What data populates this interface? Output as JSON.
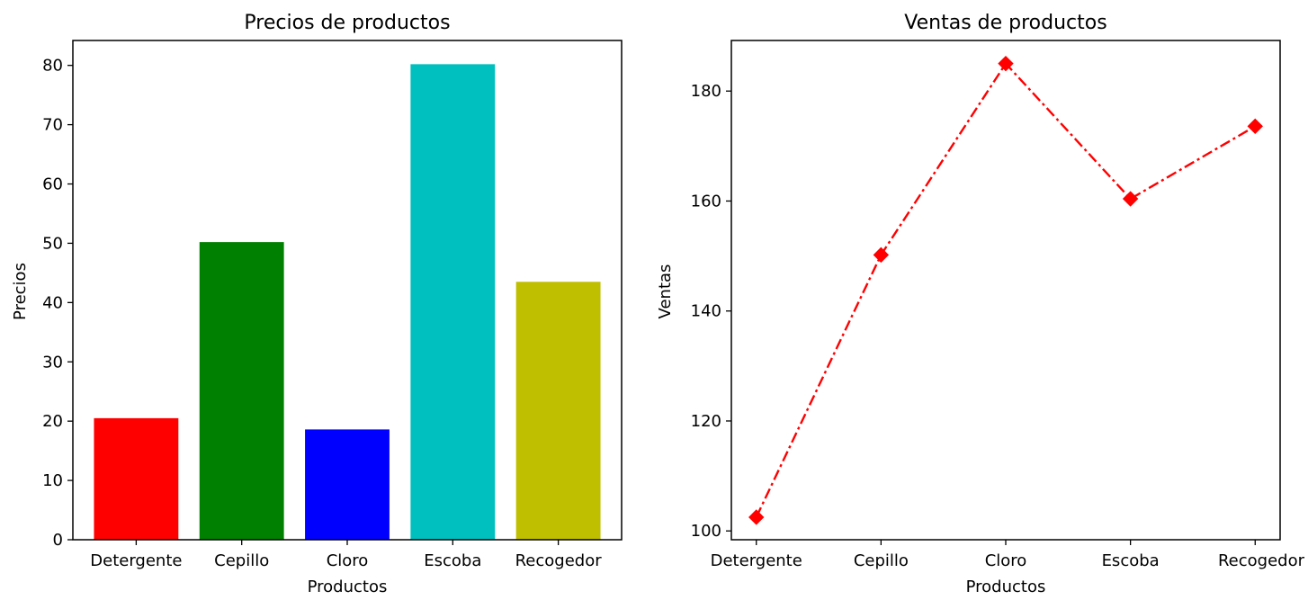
{
  "chart_data": [
    {
      "type": "bar",
      "title": "Precios de productos",
      "xlabel": "Productos",
      "ylabel": "Precios",
      "categories": [
        "Detergente",
        "Cepillo",
        "Cloro",
        "Escoba",
        "Recogedor"
      ],
      "values": [
        20.5,
        50.2,
        18.6,
        80.2,
        43.5
      ],
      "colors": [
        "#ff0000",
        "#008000",
        "#0000ff",
        "#00bfbf",
        "#bfbf00"
      ],
      "ylim": [
        0,
        84.2
      ],
      "yticks": [
        0,
        10,
        20,
        30,
        40,
        50,
        60,
        70,
        80
      ],
      "grid": false
    },
    {
      "type": "line",
      "title": "Ventas de productos",
      "xlabel": "Productos",
      "ylabel": "Ventas",
      "categories": [
        "Detergente",
        "Cepillo",
        "Cloro",
        "Escoba",
        "Recogedor"
      ],
      "values": [
        102.5,
        150.2,
        185.0,
        160.4,
        173.6
      ],
      "line_color": "#ff0000",
      "line_style": "dash-dot",
      "marker": "diamond",
      "ylim": [
        98.4,
        189.2
      ],
      "yticks": [
        100,
        120,
        140,
        160,
        180
      ],
      "grid": false
    }
  ]
}
